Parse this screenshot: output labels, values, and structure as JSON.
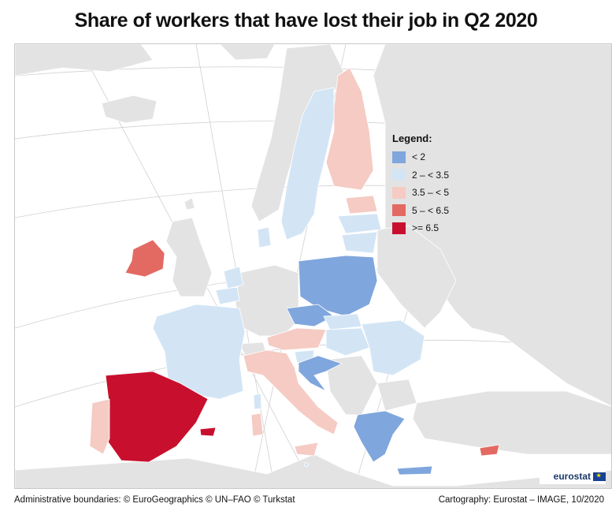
{
  "title": "Share of workers that have lost their job in Q2 2020",
  "legend": {
    "title": "Legend:",
    "items": [
      {
        "label": "< 2",
        "color": "#7fa6dd"
      },
      {
        "label": "2 – < 3.5",
        "color": "#d3e5f5"
      },
      {
        "label": "3.5 – < 5",
        "color": "#f5cbc4"
      },
      {
        "label": "5 – < 6.5",
        "color": "#e36a62"
      },
      {
        "label": ">= 6.5",
        "color": "#c8102e"
      }
    ]
  },
  "colors": {
    "sea": "#ffffff",
    "non_eu_land": "#e3e3e3",
    "no_data_eu": "#e3e3e3",
    "borders": "#ffffff"
  },
  "chart_data": {
    "type": "choropleth",
    "categories": [
      {
        "class": "< 2",
        "countries": [
          "Poland",
          "Czechia",
          "Croatia",
          "Greece"
        ]
      },
      {
        "class": "2 – < 3.5",
        "countries": [
          "Sweden",
          "France",
          "Lithuania",
          "Latvia",
          "Belgium",
          "Netherlands",
          "Hungary",
          "Romania",
          "Slovakia",
          "Slovenia",
          "Denmark",
          "Malta"
        ]
      },
      {
        "class": "3.5 – < 5",
        "countries": [
          "Finland",
          "Estonia",
          "Austria",
          "Italy",
          "Portugal"
        ]
      },
      {
        "class": "5 – < 6.5",
        "countries": [
          "Ireland",
          "Cyprus"
        ]
      },
      {
        "class": ">= 6.5",
        "countries": [
          "Spain"
        ]
      }
    ]
  },
  "branding": {
    "eurostat": "eurostat"
  },
  "footer": {
    "left": "Administrative boundaries: © EuroGeographics © UN–FAO © Turkstat",
    "right": "Cartography: Eurostat – IMAGE, 10/2020"
  }
}
